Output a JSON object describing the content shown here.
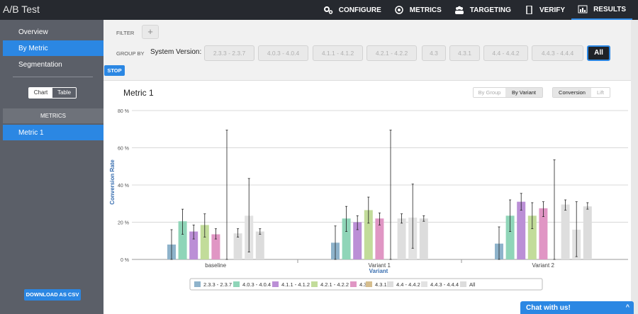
{
  "app": {
    "title": "A/B Test"
  },
  "nav": [
    {
      "label": "CONFIGURE",
      "icon": "gear-icon"
    },
    {
      "label": "METRICS",
      "icon": "target-icon"
    },
    {
      "label": "TARGETING",
      "icon": "users-icon"
    },
    {
      "label": "VERIFY",
      "icon": "phone-icon"
    },
    {
      "label": "RESULTS",
      "icon": "bar-chart-icon",
      "active": true
    }
  ],
  "sidebar": {
    "items": [
      "Overview",
      "By Metric",
      "Segmentation"
    ],
    "active_index": 1,
    "view_toggle": {
      "chart": "Chart",
      "table": "Table",
      "selected": "Table"
    },
    "metrics_header": "METRICS",
    "metrics": [
      "Metric 1"
    ],
    "download_label": "DOWNLOAD AS CSV"
  },
  "filter": {
    "filter_label": "FILTER",
    "add_label": "+",
    "group_by_label": "GROUP BY",
    "group_field": "System Version:",
    "chips": [
      "2.3.3 - 2.3.7",
      "4.0.3 - 4.0.4",
      "4.1.1 - 4.1.2",
      "4.2.1 - 4.2.2",
      "4.3",
      "4.3.1",
      "4.4 - 4.4.2",
      "4.4.3 - 4.4.4",
      "All"
    ],
    "selected_chip": "All",
    "stop_label": "STOP"
  },
  "panel": {
    "title": "Metric 1",
    "group_toggle": {
      "by_group": "By Group",
      "by_variant": "By Variant",
      "selected": "By Variant"
    },
    "mode_toggle": {
      "conversion": "Conversion",
      "lift": "Lift",
      "selected": "Conversion"
    }
  },
  "chart_data": {
    "type": "bar",
    "xlabel": "Variant",
    "ylabel": "Conversion Rate",
    "ylim": [
      0,
      80
    ],
    "yticks": [
      "0 %",
      "20 %",
      "40 %",
      "60 %",
      "80 %"
    ],
    "categories": [
      "baseline",
      "Variant 1",
      "Variant 2"
    ],
    "series": [
      {
        "name": "2.3.3 - 2.3.7",
        "color": "#8eb3cb",
        "values": [
          8,
          9,
          8.5
        ],
        "err_low": [
          0,
          0,
          0
        ],
        "err_high": [
          16,
          18,
          17.5
        ]
      },
      {
        "name": "4.0.3 - 4.0.4",
        "color": "#8fd5b8",
        "values": [
          20.5,
          22,
          23.5
        ],
        "err_low": [
          13.5,
          15,
          15
        ],
        "err_high": [
          27,
          28.5,
          32
        ]
      },
      {
        "name": "4.1.1 - 4.1.2",
        "color": "#bb8fd6",
        "values": [
          15,
          20,
          31
        ],
        "err_low": [
          11,
          16,
          26.5
        ],
        "err_high": [
          18.5,
          23.5,
          35.5
        ]
      },
      {
        "name": "4.2.1 - 4.2.2",
        "color": "#c2dc9a",
        "values": [
          18.5,
          26.5,
          23.5
        ],
        "err_low": [
          12,
          19.5,
          16.5
        ],
        "err_high": [
          24.5,
          33.5,
          30.5
        ]
      },
      {
        "name": "4.3",
        "color": "#e096c4",
        "values": [
          13.5,
          22,
          27.5
        ],
        "err_low": [
          11,
          18.5,
          23
        ],
        "err_high": [
          16.5,
          25,
          31
        ]
      },
      {
        "name": "4.3.1",
        "color": "#d6be8e",
        "values": [
          0,
          0,
          0
        ],
        "err_low": [
          0,
          0,
          0
        ],
        "err_high": [
          69.5,
          69.5,
          53.5
        ]
      },
      {
        "name": "4.4 - 4.4.2",
        "color": "#dedede",
        "values": [
          14,
          22,
          29.5
        ],
        "err_low": [
          12,
          19.5,
          26.5
        ],
        "err_high": [
          16.5,
          24.5,
          32
        ]
      },
      {
        "name": "4.4.3 - 4.4.4",
        "color": "#e2e2e2",
        "values": [
          23.5,
          22.5,
          16
        ],
        "err_low": [
          4,
          6,
          1.5
        ],
        "err_high": [
          43.5,
          40.5,
          31
        ]
      },
      {
        "name": "All",
        "color": "#dcdcdc",
        "values": [
          15,
          22,
          28.5
        ],
        "err_low": [
          13.5,
          20.5,
          27
        ],
        "err_high": [
          16.5,
          23.5,
          30.5
        ]
      }
    ],
    "legend_position": "bottom"
  },
  "chat": {
    "label": "Chat with us!",
    "caret": "^"
  }
}
